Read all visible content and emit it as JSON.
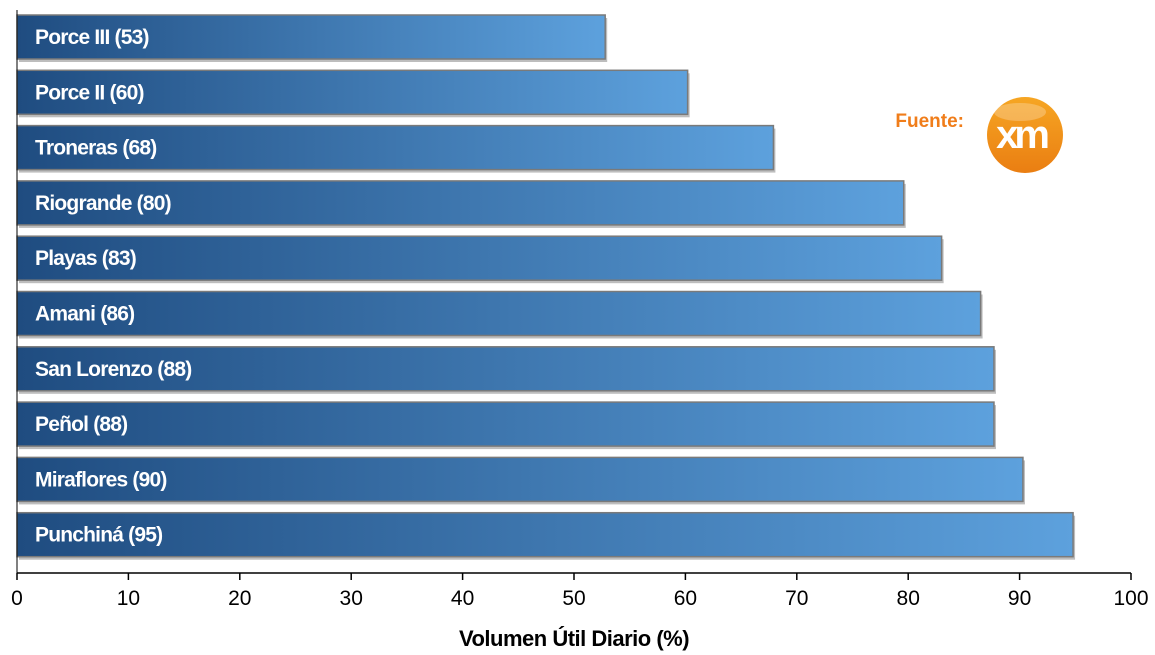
{
  "chart_data": {
    "type": "bar",
    "orientation": "horizontal",
    "categories": [
      "Porce III",
      "Porce II",
      "Troneras",
      "Riogrande",
      "Playas",
      "Amani",
      "San Lorenzo",
      "Peñol",
      "Miraflores",
      "Punchiná"
    ],
    "values": [
      52.8,
      60.2,
      67.9,
      79.6,
      83.0,
      86.5,
      87.7,
      87.7,
      90.3,
      94.8
    ],
    "bar_labels": [
      "Porce III (53)",
      "Porce II (60)",
      "Troneras (68)",
      "Riogrande (80)",
      "Playas (83)",
      "Amani (86)",
      "San Lorenzo (88)",
      "Peñol (88)",
      "Miraflores (90)",
      "Punchiná (95)"
    ],
    "xlabel": "Volumen Útil Diario (%)",
    "xlim": [
      0,
      100
    ],
    "xticks": [
      0,
      10,
      20,
      30,
      40,
      50,
      60,
      70,
      80,
      90,
      100
    ],
    "grid": false,
    "legend": "none",
    "colors": {
      "bar_dark": "#1f4c80",
      "bar_light": "#5da1dd",
      "bar_border": "#7a7a7a",
      "source_text": "#f07d1a",
      "logo": "#f39319"
    }
  },
  "source": {
    "label": "Fuente:",
    "logo_text": "xm"
  }
}
